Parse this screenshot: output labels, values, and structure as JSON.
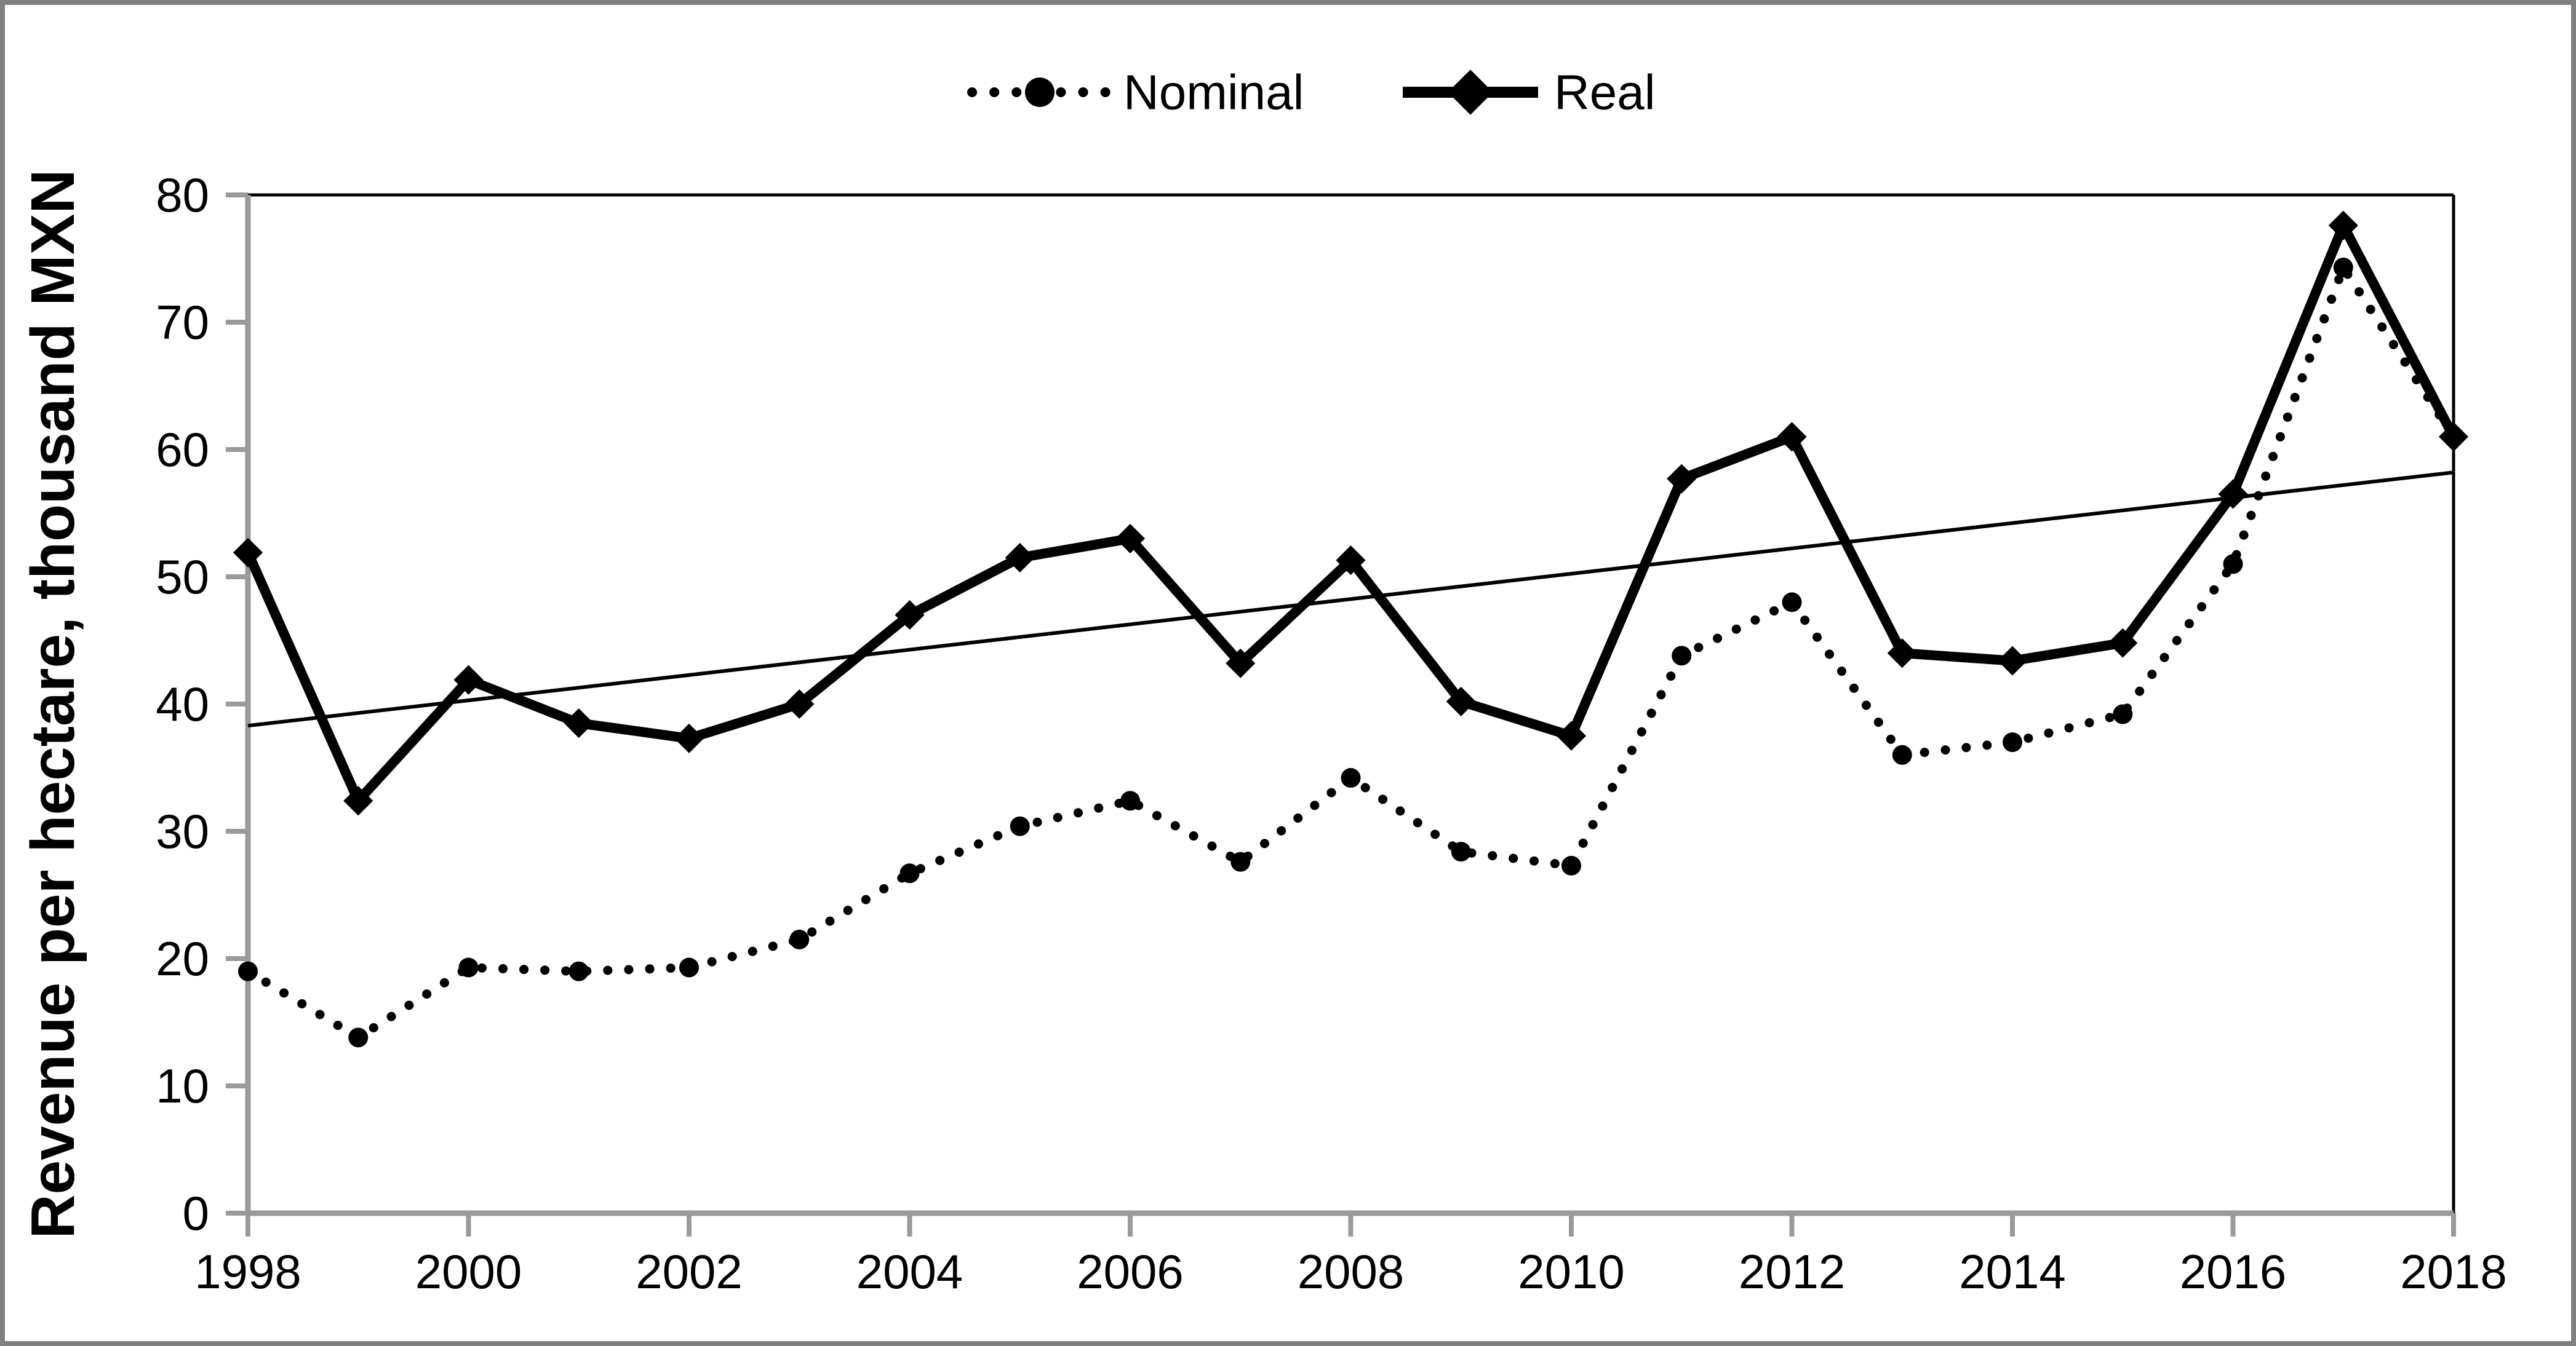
{
  "figure": {
    "background": "#ffffff",
    "frame_color": "#808080",
    "axis_color": "#9a9a9a",
    "series_color": "#000000",
    "plot_border_color": "#000000"
  },
  "legend": {
    "items": [
      {
        "label": "Nominal",
        "line": "dotted",
        "marker": "circle"
      },
      {
        "label": "Real",
        "line": "solid",
        "marker": "diamond"
      }
    ],
    "position": "top-center"
  },
  "chart_data": {
    "type": "line",
    "title": "",
    "xlabel": "",
    "ylabel": "Revenue per hectare, thousand MXN",
    "ylim": [
      0,
      80
    ],
    "ytick_step": 10,
    "yticks": [
      0,
      10,
      20,
      30,
      40,
      50,
      60,
      70,
      80
    ],
    "xtick_years": [
      1998,
      2000,
      2002,
      2004,
      2006,
      2008,
      2010,
      2012,
      2014,
      2016,
      2018
    ],
    "x": [
      1998,
      1999,
      2000,
      2001,
      2002,
      2003,
      2004,
      2005,
      2006,
      2007,
      2008,
      2009,
      2010,
      2011,
      2012,
      2013,
      2014,
      2015,
      2016,
      2017,
      2018
    ],
    "series": [
      {
        "name": "Nominal",
        "style": "dotted",
        "marker": "circle",
        "values": [
          19.0,
          13.8,
          19.3,
          19.0,
          19.3,
          21.5,
          26.7,
          30.4,
          32.4,
          27.6,
          34.2,
          28.4,
          27.3,
          43.8,
          48.0,
          36.0,
          37.0,
          39.2,
          51.0,
          74.3,
          61.0
        ]
      },
      {
        "name": "Real",
        "style": "solid",
        "marker": "diamond",
        "values": [
          51.9,
          32.4,
          41.9,
          38.5,
          37.3,
          40.0,
          47.0,
          51.5,
          53.0,
          43.2,
          51.3,
          40.2,
          37.5,
          57.7,
          61.0,
          44.0,
          43.4,
          44.8,
          56.5,
          77.6,
          61.0
        ]
      }
    ],
    "trendline": {
      "x_start": 1998,
      "y_start": 38.3,
      "x_end": 2018,
      "y_end": 58.2
    },
    "grid": false,
    "legend_position": "top-center"
  }
}
